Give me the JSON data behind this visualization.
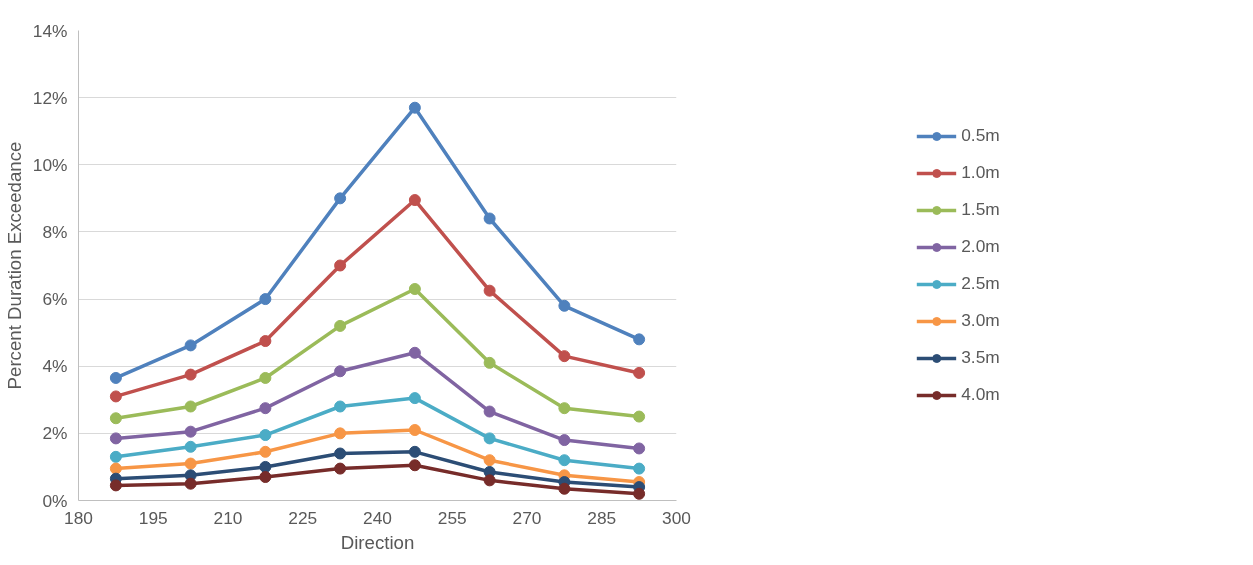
{
  "chart_data": {
    "type": "line",
    "xlabel": "Direction",
    "ylabel": "Percent Duration Exceedance",
    "x": [
      187.5,
      202.5,
      217.5,
      232.5,
      247.5,
      262.5,
      277.5,
      292.5
    ],
    "xlim": [
      180,
      300
    ],
    "xticks": [
      180,
      195,
      210,
      225,
      240,
      255,
      270,
      285,
      300
    ],
    "ylim": [
      0,
      14
    ],
    "yticks": [
      {
        "value": 0,
        "label": "0%"
      },
      {
        "value": 2,
        "label": "2%"
      },
      {
        "value": 4,
        "label": "4%"
      },
      {
        "value": 6,
        "label": "6%"
      },
      {
        "value": 8,
        "label": "8%"
      },
      {
        "value": 10,
        "label": "10%"
      },
      {
        "value": 12,
        "label": "12%"
      },
      {
        "value": 14,
        "label": "14%"
      }
    ],
    "grid": "y",
    "legend": "right",
    "marker": "circle",
    "line_style": "solid",
    "series": [
      {
        "name": "0.5m",
        "color": "#4f81bd",
        "values": [
          3.65,
          4.62,
          6.0,
          9.0,
          11.7,
          8.4,
          5.8,
          4.8
        ]
      },
      {
        "name": "1.0m",
        "color": "#c0504d",
        "values": [
          3.1,
          3.75,
          4.75,
          7.0,
          8.95,
          6.25,
          4.3,
          3.8
        ]
      },
      {
        "name": "1.5m",
        "color": "#9bbb59",
        "values": [
          2.45,
          2.8,
          3.65,
          5.2,
          6.3,
          4.1,
          2.75,
          2.5
        ]
      },
      {
        "name": "2.0m",
        "color": "#8064a2",
        "values": [
          1.85,
          2.05,
          2.75,
          3.85,
          4.4,
          2.65,
          1.8,
          1.55
        ]
      },
      {
        "name": "2.5m",
        "color": "#4bacc6",
        "values": [
          1.3,
          1.6,
          1.95,
          2.8,
          3.05,
          1.85,
          1.2,
          0.95
        ]
      },
      {
        "name": "3.0m",
        "color": "#f79646",
        "values": [
          0.95,
          1.1,
          1.45,
          2.0,
          2.1,
          1.2,
          0.75,
          0.55
        ]
      },
      {
        "name": "3.5m",
        "color": "#2c4d75",
        "values": [
          0.65,
          0.75,
          1.0,
          1.4,
          1.45,
          0.85,
          0.55,
          0.4
        ]
      },
      {
        "name": "4.0m",
        "color": "#772c2a",
        "values": [
          0.45,
          0.5,
          0.7,
          0.95,
          1.05,
          0.6,
          0.35,
          0.2
        ]
      }
    ]
  }
}
